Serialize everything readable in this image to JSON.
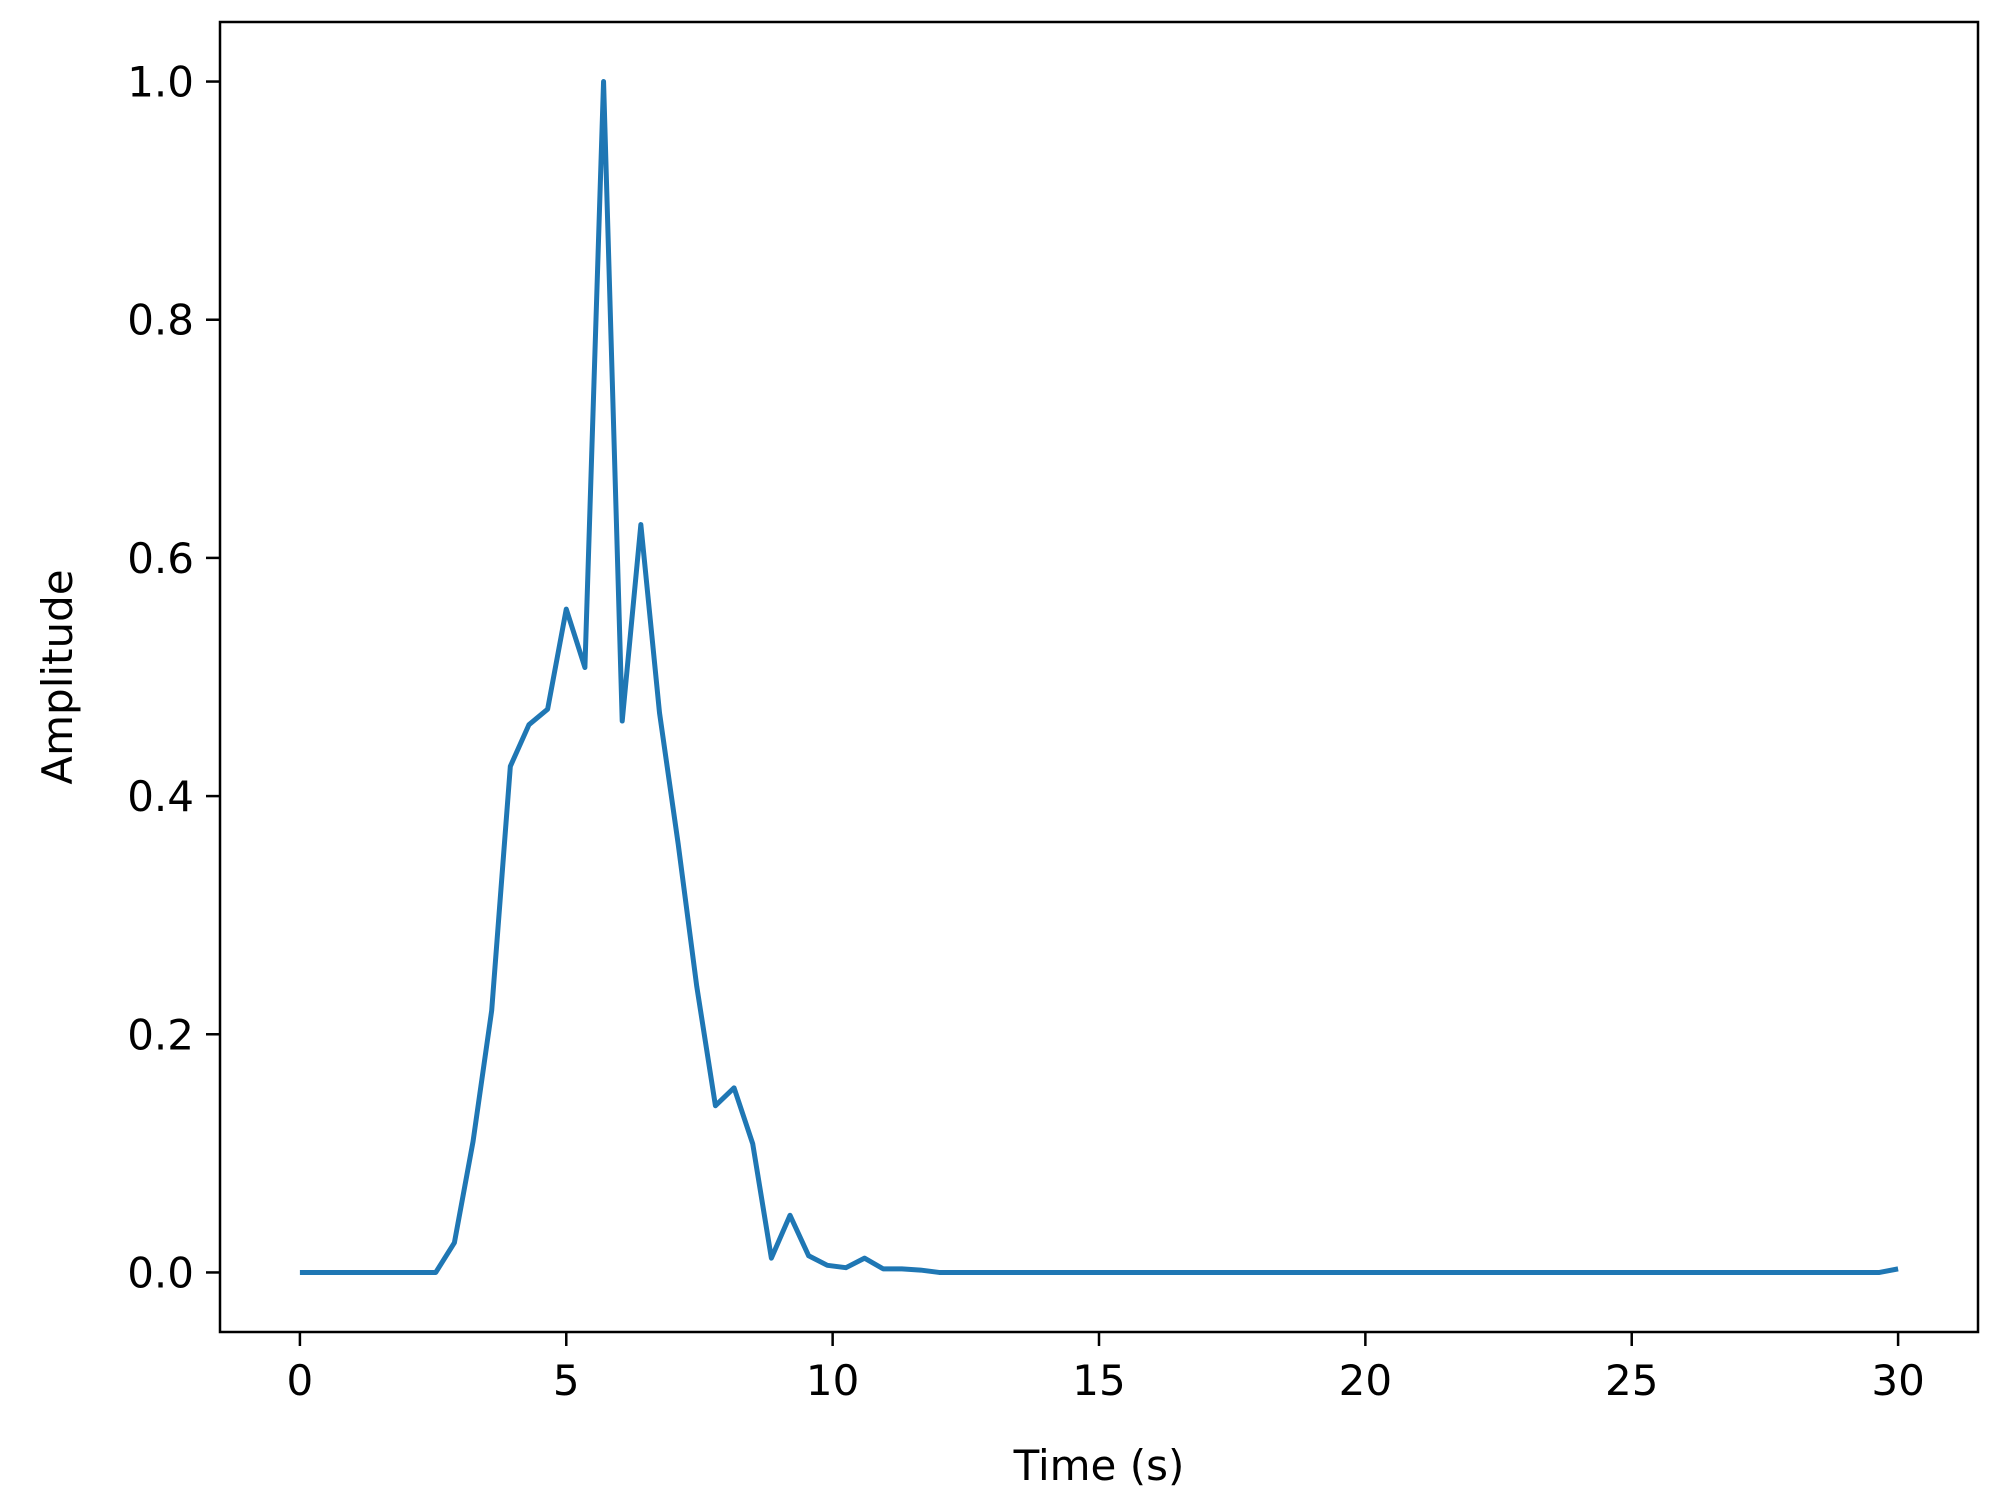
{
  "chart_data": {
    "type": "line",
    "title": "",
    "xlabel": "Time (s)",
    "ylabel": "Amplitude",
    "xlim": [
      -1.5,
      31.5
    ],
    "ylim": [
      -0.05,
      1.05
    ],
    "x_ticks": [
      0,
      5,
      10,
      15,
      20,
      25,
      30
    ],
    "x_tick_labels": [
      "0",
      "5",
      "10",
      "15",
      "20",
      "25",
      "30"
    ],
    "y_ticks": [
      0.0,
      0.2,
      0.4,
      0.6,
      0.8,
      1.0
    ],
    "y_tick_labels": [
      "0.0",
      "0.2",
      "0.4",
      "0.6",
      "0.8",
      "1.0"
    ],
    "grid": false,
    "line_color": "#1f77b4",
    "series": [
      {
        "x": [
          0,
          0.35,
          0.7,
          1.05,
          1.4,
          1.75,
          2.1,
          2.45,
          2.55,
          2.9,
          3.25,
          3.6,
          3.95,
          4.3,
          4.65,
          5.0,
          5.35,
          5.7,
          6.05,
          6.4,
          6.75,
          7.1,
          7.45,
          7.8,
          8.15,
          8.5,
          8.85,
          9.2,
          9.55,
          9.9,
          10.25,
          10.6,
          10.95,
          11.3,
          11.65,
          12.0,
          12.35,
          12.7,
          13.05,
          13.4,
          15,
          17.5,
          20,
          22.5,
          25,
          27.5,
          29.65,
          30.0
        ],
        "y": [
          0.0,
          0.0,
          0.0,
          0.0,
          0.0,
          0.0,
          0.0,
          0.0,
          0.0,
          0.025,
          0.11,
          0.22,
          0.425,
          0.46,
          0.473,
          0.557,
          0.508,
          1.0,
          0.463,
          0.628,
          0.47,
          0.36,
          0.24,
          0.14,
          0.155,
          0.108,
          0.012,
          0.048,
          0.014,
          0.006,
          0.004,
          0.012,
          0.003,
          0.003,
          0.002,
          0.0,
          0.0,
          0.0,
          0.0,
          0.0,
          0.0,
          0.0,
          0.0,
          0.0,
          0.0,
          0.0,
          0.0,
          0.003
        ]
      }
    ]
  }
}
